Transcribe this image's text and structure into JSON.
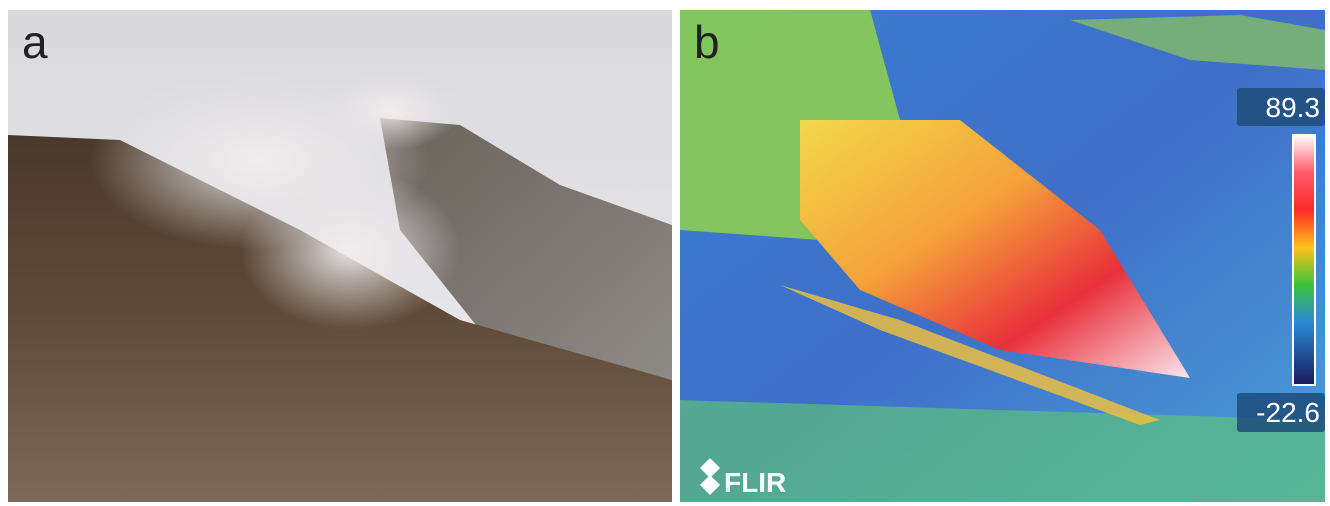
{
  "panels": [
    {
      "label": "a"
    },
    {
      "label": "b",
      "scale_max": "89.3",
      "scale_min": "-22.6",
      "logo": "FLIR"
    }
  ]
}
